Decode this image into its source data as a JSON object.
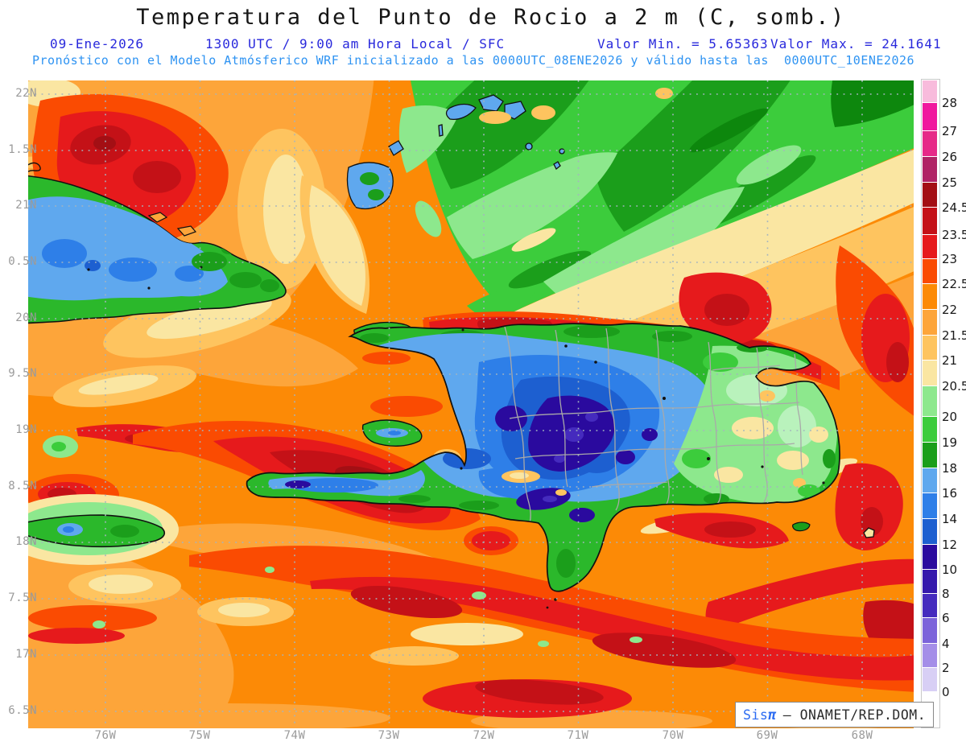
{
  "header": {
    "title": "Temperatura del Punto de Rocio a 2 m (C, somb.)",
    "date": "09-Ene-2026",
    "time_info": "1300 UTC / 9:00 am Hora Local / SFC",
    "min_label": "Valor Min. = 5.65363",
    "max_label": "Valor Max. = 24.1641",
    "forecast_line": "Pronóstico con el Modelo Atmósferico WRF inicializado a las 0000UTC_08ENE2026 y válido hasta las  0000UTC_10ENE2026"
  },
  "axes": {
    "lat": [
      "22N",
      "1.5N",
      "21N",
      "0.5N",
      "20N",
      "9.5N",
      "19N",
      "8.5N",
      "18N",
      "7.5N",
      "17N",
      "6.5N"
    ],
    "lon": [
      "76W",
      "75W",
      "74W",
      "73W",
      "72W",
      "71W",
      "70W",
      "69W",
      "68W"
    ]
  },
  "colorbar": {
    "tick_labels": [
      "28",
      "27",
      "26",
      "25",
      "24.5",
      "23.5",
      "23",
      "22.5",
      "22",
      "21.5",
      "21",
      "20.5",
      "20",
      "19",
      "18",
      "16",
      "14",
      "12",
      "10",
      "8",
      "6",
      "4",
      "2",
      "0"
    ],
    "segment_colors": [
      "#F8BBDC",
      "#F0189E",
      "#E62988",
      "#B02365",
      "#A30F14",
      "#C41117",
      "#E61A1C",
      "#FA4B02",
      "#FC8A06",
      "#FDA53A",
      "#FEC45F",
      "#FAE6A2",
      "#8DE88D",
      "#3CCC3C",
      "#1B9E1B",
      "#5FA8EE",
      "#2E7FE8",
      "#1D5FD0",
      "#2A0A9E",
      "#3519AC",
      "#452BBE",
      "#7C64DA",
      "#A48EE8",
      "#D8CFF5",
      "#FFFFFF"
    ]
  },
  "watermark": {
    "brand": "Sis",
    "brand_symbol": "π",
    "text": "– ONAMET/REP.DOM."
  },
  "chart_data": {
    "type": "heatmap",
    "title": "Temperatura del Punto de Rocio a 2 m (C, somb.)",
    "legend_tick_values": [
      28,
      27,
      26,
      25,
      24.5,
      23.5,
      23,
      22.5,
      22,
      21.5,
      21,
      20.5,
      20,
      19,
      18,
      16,
      14,
      12,
      10,
      8,
      6,
      4,
      2,
      0
    ],
    "value_min": 5.65363,
    "value_max": 24.1641,
    "x_tick_labels": [
      "76W",
      "75W",
      "74W",
      "73W",
      "72W",
      "71W",
      "70W",
      "69W",
      "68W"
    ],
    "y_tick_labels": [
      "22N",
      "1.5N",
      "21N",
      "0.5N",
      "20N",
      "9.5N",
      "19N",
      "8.5N",
      "18N",
      "7.5N",
      "17N",
      "6.5N"
    ],
    "legend_position": "right",
    "grid": true
  }
}
